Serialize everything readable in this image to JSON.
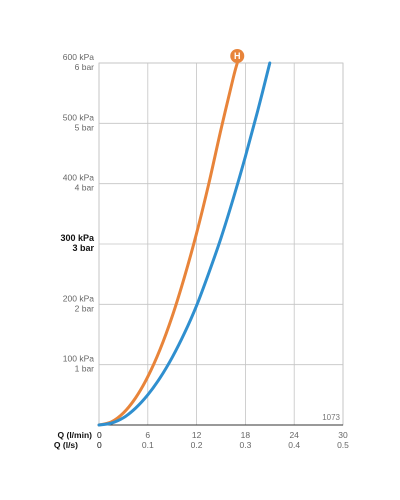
{
  "chart_data": {
    "type": "line",
    "title": "",
    "product_code": "1073",
    "y_axis": {
      "unit_primary": "kPa",
      "unit_secondary": "bar",
      "ylim": [
        0,
        600
      ],
      "ticks": [
        {
          "kpa": "100 kPa",
          "bar": "1 bar",
          "value": 100,
          "bold": false
        },
        {
          "kpa": "200 kPa",
          "bar": "2 bar",
          "value": 200,
          "bold": false
        },
        {
          "kpa": "300 kPa",
          "bar": "3 bar",
          "value": 300,
          "bold": true
        },
        {
          "kpa": "400 kPa",
          "bar": "4 bar",
          "value": 400,
          "bold": false
        },
        {
          "kpa": "500 kPa",
          "bar": "5 bar",
          "value": 500,
          "bold": false
        },
        {
          "kpa": "600 kPa",
          "bar": "6 bar",
          "value": 600,
          "bold": false
        }
      ]
    },
    "x_axis": {
      "label_primary": "Q (l/min)",
      "label_secondary": "Q (l/s)",
      "xlim": [
        0,
        30
      ],
      "ticks": [
        {
          "value": 0,
          "lmin": "0",
          "ls": "0"
        },
        {
          "value": 6,
          "lmin": "6",
          "ls": "0.1"
        },
        {
          "value": 12,
          "lmin": "12",
          "ls": "0.2"
        },
        {
          "value": 18,
          "lmin": "18",
          "ls": "0.3"
        },
        {
          "value": 24,
          "lmin": "24",
          "ls": "0.4"
        },
        {
          "value": 30,
          "lmin": "30",
          "ls": "0.5"
        }
      ]
    },
    "grid": true,
    "series": [
      {
        "color": "#e8843a",
        "marker_label": "H",
        "x": [
          0,
          1.5,
          3,
          4.5,
          6,
          7.5,
          9,
          10.5,
          12,
          13.5,
          15,
          16.5,
          17.0
        ],
        "y": [
          0,
          5,
          20,
          45,
          80,
          125,
          180,
          245,
          318,
          400,
          490,
          575,
          600
        ]
      },
      {
        "color": "#2f8fcf",
        "x": [
          0,
          1.5,
          3,
          4.5,
          6,
          7.5,
          9,
          10.5,
          12,
          13.5,
          15,
          16.5,
          18,
          19.5,
          21.0
        ],
        "y": [
          0,
          3,
          12,
          28,
          50,
          78,
          112,
          152,
          198,
          252,
          310,
          375,
          445,
          520,
          600
        ]
      }
    ]
  }
}
